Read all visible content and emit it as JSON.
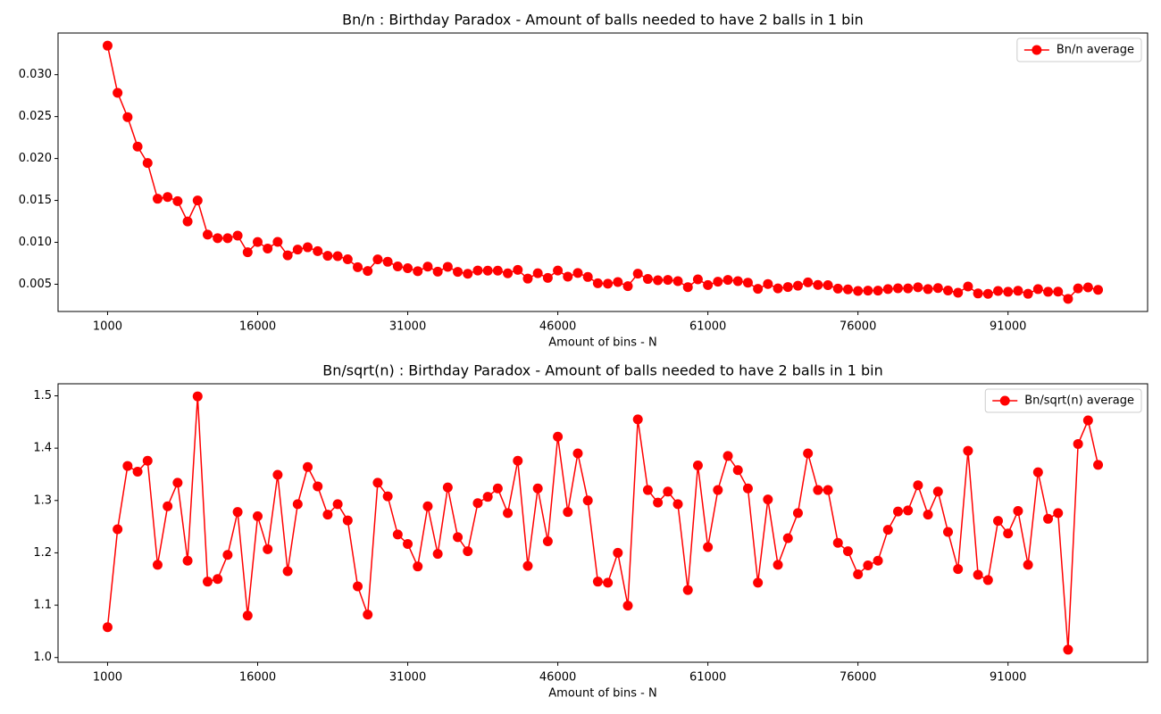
{
  "chart_data": [
    {
      "type": "line",
      "title": "Bn/n : Birthday Paradox - Amount of balls needed to have 2 balls in 1 bin",
      "xlabel": "Amount of bins - N",
      "x": [
        1000,
        2000,
        3000,
        4000,
        5000,
        6000,
        7000,
        8000,
        9000,
        10000,
        11000,
        12000,
        13000,
        14000,
        15000,
        16000,
        17000,
        18000,
        19000,
        20000,
        21000,
        22000,
        23000,
        24000,
        25000,
        26000,
        27000,
        28000,
        29000,
        30000,
        31000,
        32000,
        33000,
        34000,
        35000,
        36000,
        37000,
        38000,
        39000,
        40000,
        41000,
        42000,
        43000,
        44000,
        45000,
        46000,
        47000,
        48000,
        49000,
        50000,
        51000,
        52000,
        53000,
        54000,
        55000,
        56000,
        57000,
        58000,
        59000,
        60000,
        61000,
        62000,
        63000,
        64000,
        65000,
        66000,
        67000,
        68000,
        69000,
        70000,
        71000,
        72000,
        73000,
        74000,
        75000,
        76000,
        77000,
        78000,
        79000,
        80000,
        81000,
        82000,
        83000,
        84000,
        85000,
        86000,
        87000,
        88000,
        89000,
        90000,
        91000,
        92000,
        93000,
        94000,
        95000,
        96000,
        97000,
        98000,
        99000,
        100000
      ],
      "series": [
        {
          "name": "Bn/n average",
          "color": "#ff0000",
          "values": [
            0.03346,
            0.02784,
            0.02494,
            0.02142,
            0.01946,
            0.0152,
            0.01541,
            0.01491,
            0.01249,
            0.01499,
            0.01092,
            0.0105,
            0.01049,
            0.0108,
            0.00882,
            0.01004,
            0.00926,
            0.01006,
            0.00845,
            0.00914,
            0.00941,
            0.00895,
            0.00839,
            0.00835,
            0.00798,
            0.00704,
            0.00658,
            0.00797,
            0.00768,
            0.00713,
            0.00691,
            0.00656,
            0.0071,
            0.0065,
            0.00708,
            0.00648,
            0.00625,
            0.00664,
            0.00662,
            0.00662,
            0.0063,
            0.00671,
            0.00567,
            0.00631,
            0.00576,
            0.00663,
            0.0059,
            0.00634,
            0.00587,
            0.00512,
            0.00506,
            0.00526,
            0.00477,
            0.00626,
            0.00563,
            0.00548,
            0.00552,
            0.00537,
            0.00465,
            0.00558,
            0.0049,
            0.0053,
            0.00552,
            0.00537,
            0.00519,
            0.00445,
            0.00503,
            0.00451,
            0.00467,
            0.00482,
            0.00522,
            0.00492,
            0.00489,
            0.00448,
            0.00439,
            0.0042,
            0.00424,
            0.00424,
            0.00443,
            0.00452,
            0.0045,
            0.00464,
            0.00442,
            0.00454,
            0.00425,
            0.00399,
            0.00473,
            0.0039,
            0.00385,
            0.0042,
            0.0041,
            0.00422,
            0.00386,
            0.00442,
            0.0041,
            0.00412,
            0.00326,
            0.0045,
            0.00462,
            0.00433
          ]
        }
      ],
      "xlim": [
        -3950,
        104950
      ],
      "xticks": [
        1000,
        16000,
        31000,
        46000,
        61000,
        76000,
        91000
      ],
      "ylim": [
        0.00175,
        0.03497
      ],
      "yticks": [
        {
          "value": 0.005,
          "label": "0.005"
        },
        {
          "value": 0.01,
          "label": "0.010"
        },
        {
          "value": 0.015,
          "label": "0.015"
        },
        {
          "value": 0.02,
          "label": "0.020"
        },
        {
          "value": 0.025,
          "label": "0.025"
        },
        {
          "value": 0.03,
          "label": "0.030"
        }
      ],
      "legend": "upper right",
      "grid": false
    },
    {
      "type": "line",
      "title": "Bn/sqrt(n) : Birthday Paradox - Amount of balls needed to have 2 balls in 1 bin",
      "xlabel": "Amount of bins - N",
      "x": [
        1000,
        2000,
        3000,
        4000,
        5000,
        6000,
        7000,
        8000,
        9000,
        10000,
        11000,
        12000,
        13000,
        14000,
        15000,
        16000,
        17000,
        18000,
        19000,
        20000,
        21000,
        22000,
        23000,
        24000,
        25000,
        26000,
        27000,
        28000,
        29000,
        30000,
        31000,
        32000,
        33000,
        34000,
        35000,
        36000,
        37000,
        38000,
        39000,
        40000,
        41000,
        42000,
        43000,
        44000,
        45000,
        46000,
        47000,
        48000,
        49000,
        50000,
        51000,
        52000,
        53000,
        54000,
        55000,
        56000,
        57000,
        58000,
        59000,
        60000,
        61000,
        62000,
        63000,
        64000,
        65000,
        66000,
        67000,
        68000,
        69000,
        70000,
        71000,
        72000,
        73000,
        74000,
        75000,
        76000,
        77000,
        78000,
        79000,
        80000,
        81000,
        82000,
        83000,
        84000,
        85000,
        86000,
        87000,
        88000,
        89000,
        90000,
        91000,
        92000,
        93000,
        94000,
        95000,
        96000,
        97000,
        98000,
        99000,
        100000
      ],
      "series": [
        {
          "name": "Bn/sqrt(n) average",
          "color": "#ff0000",
          "values": [
            1.058,
            1.245,
            1.366,
            1.355,
            1.376,
            1.177,
            1.289,
            1.334,
            1.185,
            1.499,
            1.145,
            1.15,
            1.196,
            1.278,
            1.08,
            1.27,
            1.207,
            1.349,
            1.165,
            1.293,
            1.364,
            1.327,
            1.273,
            1.293,
            1.262,
            1.136,
            1.082,
            1.334,
            1.308,
            1.235,
            1.217,
            1.174,
            1.289,
            1.198,
            1.325,
            1.23,
            1.203,
            1.295,
            1.307,
            1.323,
            1.276,
            1.376,
            1.175,
            1.323,
            1.222,
            1.422,
            1.278,
            1.39,
            1.3,
            1.145,
            1.143,
            1.2,
            1.099,
            1.455,
            1.32,
            1.296,
            1.317,
            1.293,
            1.129,
            1.367,
            1.211,
            1.32,
            1.385,
            1.358,
            1.323,
            1.143,
            1.302,
            1.177,
            1.228,
            1.276,
            1.39,
            1.32,
            1.32,
            1.219,
            1.203,
            1.159,
            1.176,
            1.185,
            1.244,
            1.279,
            1.281,
            1.329,
            1.273,
            1.317,
            1.24,
            1.169,
            1.395,
            1.158,
            1.148,
            1.261,
            1.237,
            1.28,
            1.177,
            1.354,
            1.265,
            1.276,
            1.015,
            1.408,
            1.453,
            1.368
          ]
        }
      ],
      "xlim": [
        -3950,
        104950
      ],
      "xticks": [
        1000,
        16000,
        31000,
        46000,
        61000,
        76000,
        91000
      ],
      "ylim": [
        0.991,
        1.523
      ],
      "yticks": [
        {
          "value": 1,
          "label": "1.0"
        },
        1.1,
        1.2,
        1.3,
        1.4,
        1.5
      ],
      "legend": "upper right",
      "grid": false
    }
  ]
}
